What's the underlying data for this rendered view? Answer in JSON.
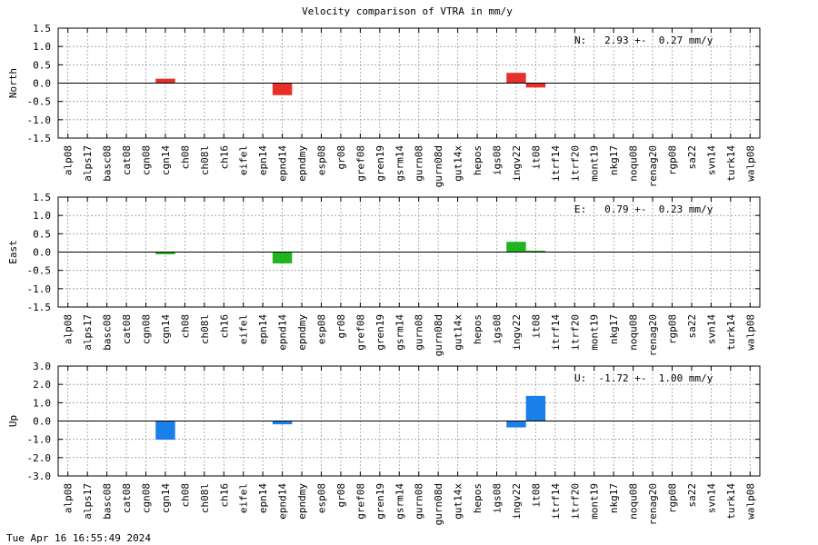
{
  "chart_data": {
    "type": "bar",
    "title": "Velocity comparison of VTRA in mm/y",
    "categories": [
      "alp08",
      "alps17",
      "basc08",
      "cat08",
      "cgn08",
      "cgn14",
      "ch08",
      "ch08l",
      "ch16",
      "eifel",
      "epn14",
      "epnd14",
      "epndmy",
      "esp08",
      "gr08",
      "gref08",
      "gren19",
      "gsrm14",
      "gurn08",
      "gurn08d",
      "gut14x",
      "hepos",
      "igs08",
      "ingv22",
      "it08",
      "itrf14",
      "itrf20",
      "mont19",
      "nkg17",
      "noqu08",
      "renag20",
      "rgp08",
      "sa22",
      "svn14",
      "turk14",
      "walp08"
    ],
    "panels": [
      {
        "ylabel": "North",
        "ylim": [
          -1.5,
          1.5
        ],
        "yticks": [
          "1.5",
          "1.0",
          "0.5",
          "0.0",
          "-0.5",
          "-1.0",
          "-1.5"
        ],
        "ytick_values": [
          1.5,
          1.0,
          0.5,
          0.0,
          -0.5,
          -1.0,
          -1.5
        ],
        "color": "#e8302a",
        "annotation": "N:   2.93 +-  0.27 mm/y",
        "values": [
          0,
          0,
          0,
          0,
          0,
          0.12,
          0,
          0,
          0,
          0,
          0,
          -0.33,
          0,
          0,
          0,
          0,
          0,
          0,
          0,
          0,
          0,
          0,
          0,
          0.28,
          -0.12,
          0,
          0,
          0,
          0,
          0,
          0,
          0,
          0,
          0,
          0,
          0
        ]
      },
      {
        "ylabel": "East",
        "ylim": [
          -1.5,
          1.5
        ],
        "yticks": [
          "1.5",
          "1.0",
          "0.5",
          "0.0",
          "-0.5",
          "-1.0",
          "-1.5"
        ],
        "ytick_values": [
          1.5,
          1.0,
          0.5,
          0.0,
          -0.5,
          -1.0,
          -1.5
        ],
        "color": "#1fb51f",
        "annotation": "E:   0.79 +-  0.23 mm/y",
        "values": [
          0,
          0,
          0,
          0,
          0,
          -0.06,
          0,
          0,
          0,
          0,
          0,
          -0.31,
          0,
          0,
          0,
          0,
          0,
          0,
          0,
          0,
          0,
          0,
          0,
          0.28,
          0.03,
          0,
          0,
          0,
          0,
          0,
          0,
          0,
          0,
          0,
          0,
          0
        ]
      },
      {
        "ylabel": "Up",
        "ylim": [
          -3.0,
          3.0
        ],
        "yticks": [
          "3.0",
          "2.0",
          "1.0",
          "0.0",
          "-1.0",
          "-2.0",
          "-3.0"
        ],
        "ytick_values": [
          3.0,
          2.0,
          1.0,
          0.0,
          -1.0,
          -2.0,
          -3.0
        ],
        "color": "#1a7fe8",
        "annotation": "U:  -1.72 +-  1.00 mm/y",
        "values": [
          0,
          0,
          0,
          0,
          0,
          -1.02,
          0,
          0,
          0,
          0,
          0,
          -0.18,
          0,
          0,
          0,
          0,
          0,
          0,
          0,
          0,
          0,
          0,
          0,
          -0.35,
          1.37,
          0,
          0,
          0,
          0,
          0,
          0,
          0,
          0,
          0,
          0,
          0
        ]
      }
    ],
    "grid": true
  },
  "footer": {
    "timestamp": "Tue Apr 16 16:55:49 2024"
  }
}
